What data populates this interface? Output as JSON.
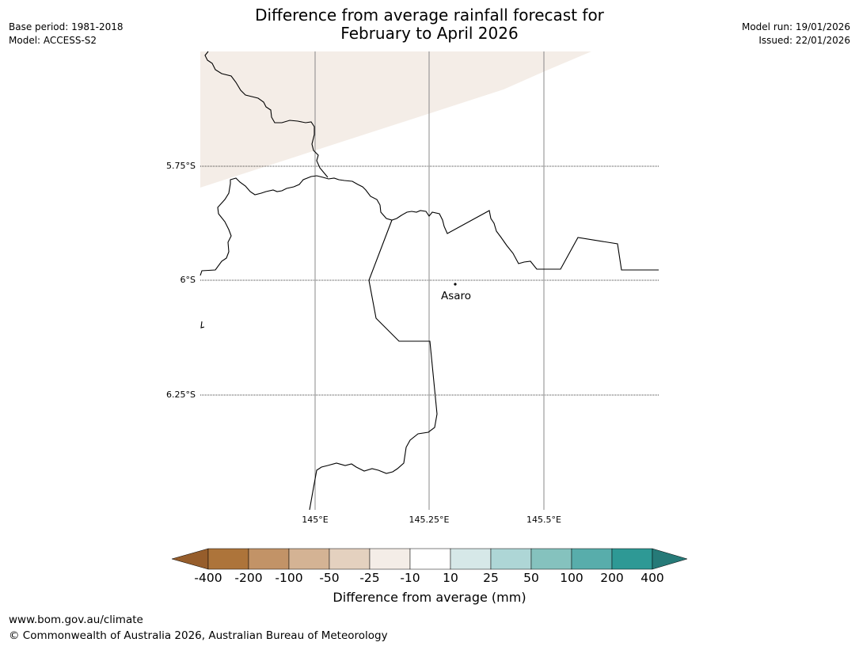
{
  "title_line1": "Difference from average rainfall forecast for",
  "title_line2": "February to April 2026",
  "meta_left": {
    "base_period": "Base period: 1981-2018",
    "model": "Model: ACCESS-S2"
  },
  "meta_right": {
    "model_run": "Model run: 19/01/2026",
    "issued": "Issued: 22/01/2026"
  },
  "map": {
    "lat_labels": [
      "5.75°S",
      "6°S",
      "6.25°S"
    ],
    "lon_labels": [
      "145°E",
      "145.25°E",
      "145.5°E"
    ],
    "place": {
      "name": "Asaro"
    },
    "shaded_category": "-25 to -10"
  },
  "colorbar": {
    "title": "Difference from average (mm)",
    "ticks": [
      "-400",
      "-200",
      "-100",
      "-50",
      "-25",
      "-10",
      "10",
      "25",
      "50",
      "100",
      "200",
      "400"
    ],
    "colors": {
      "below_min": "#965d2b",
      "bins": [
        "#ad743a",
        "#c29367",
        "#d4b394",
        "#e4d1bf",
        "#f4ede7",
        "#ffffff",
        "#d6e8e8",
        "#aed6d6",
        "#85c2be",
        "#58adab",
        "#2e9995"
      ],
      "above_max": "#267a78"
    }
  },
  "footer": {
    "url": "www.bom.gov.au/climate",
    "copyright": "© Commonwealth of Australia 2026, Australian Bureau of Meteorology"
  }
}
